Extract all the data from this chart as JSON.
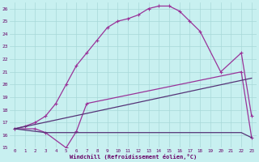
{
  "xlabel": "Windchill (Refroidissement éolien,°C)",
  "bg_color": "#c8f0f0",
  "grid_color": "#a8d8d8",
  "line_color1": "#993399",
  "line_color2": "#993399",
  "line_color3": "#553377",
  "line_color4": "#553377",
  "text_color": "#660066",
  "xlim": [
    -0.5,
    23.5
  ],
  "ylim": [
    15,
    26.5
  ],
  "xticks": [
    0,
    1,
    2,
    3,
    4,
    5,
    6,
    7,
    8,
    9,
    10,
    11,
    12,
    13,
    14,
    15,
    16,
    17,
    18,
    19,
    20,
    21,
    22,
    23
  ],
  "yticks": [
    15,
    16,
    17,
    18,
    19,
    20,
    21,
    22,
    23,
    24,
    25,
    26
  ],
  "line1_x": [
    0,
    1,
    2,
    3,
    4,
    5,
    6,
    7,
    8,
    9,
    10,
    11,
    12,
    13,
    14,
    15,
    16,
    17,
    18,
    20,
    22,
    23
  ],
  "line1_y": [
    16.5,
    16.7,
    17.0,
    17.5,
    18.5,
    20.0,
    21.5,
    22.5,
    23.5,
    24.5,
    25.0,
    25.2,
    25.5,
    26.0,
    26.2,
    26.2,
    25.8,
    25.0,
    24.2,
    21.0,
    22.5,
    17.5
  ],
  "line2_x": [
    0,
    2,
    3,
    5,
    6,
    7,
    22,
    23
  ],
  "line2_y": [
    16.5,
    16.5,
    16.2,
    15.0,
    16.3,
    18.5,
    21.0,
    15.8
  ],
  "line3_x": [
    0,
    3,
    5,
    22,
    23
  ],
  "line3_y": [
    16.5,
    16.2,
    16.2,
    16.2,
    15.8
  ],
  "line4_x": [
    0,
    23
  ],
  "line4_y": [
    16.5,
    20.5
  ]
}
